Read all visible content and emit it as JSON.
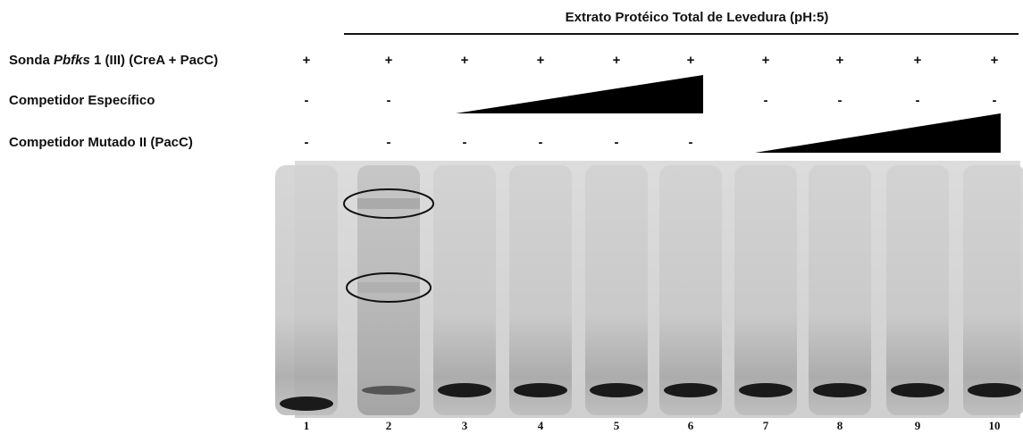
{
  "header": {
    "title": "Extrato Protéico Total de Levedura (pH:5)"
  },
  "rows": [
    {
      "label": [
        "Sonda ",
        "Pbfks",
        " 1 (III) (CreA + PacC)"
      ],
      "signs": [
        "+",
        "+",
        "+",
        "+",
        "+",
        "+",
        "+",
        "+",
        "+",
        "+"
      ]
    },
    {
      "label": [
        "Competidor Específico"
      ],
      "signs": [
        "-",
        "-",
        null,
        null,
        null,
        null,
        "-",
        "-",
        "-",
        "-"
      ]
    },
    {
      "label": [
        "Competidor Mutado II (PacC)"
      ],
      "signs": [
        "-",
        "-",
        "-",
        "-",
        "-",
        "-",
        null,
        null,
        null,
        null
      ]
    }
  ],
  "lanes": [
    "1",
    "2",
    "3",
    "4",
    "5",
    "6",
    "7",
    "8",
    "9",
    "10"
  ]
}
